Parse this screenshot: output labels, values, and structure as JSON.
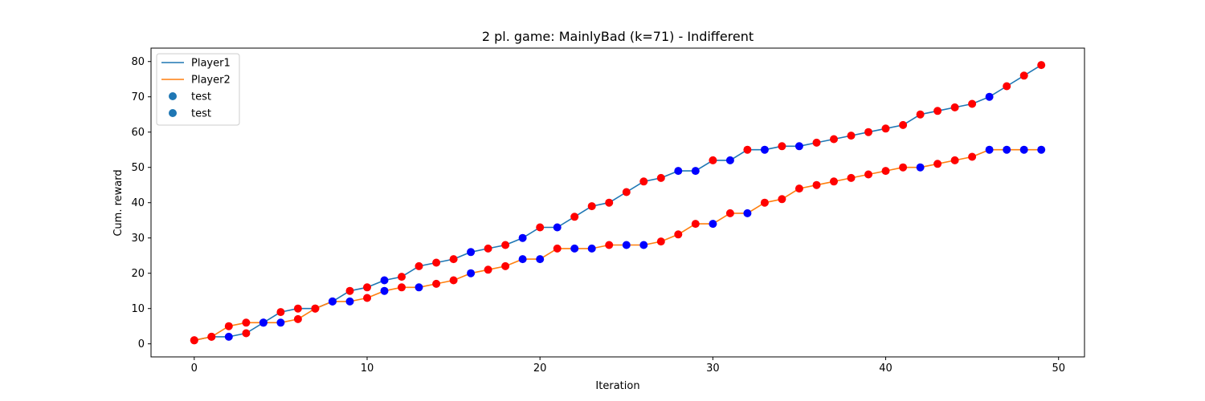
{
  "chart_data": {
    "type": "line",
    "title": "2 pl. game: MainlyBad (k=71) - Indifferent",
    "xlabel": "Iteration",
    "ylabel": "Cum. reward",
    "xlim": [
      -2.5,
      51.5
    ],
    "ylim": [
      -3.7,
      83.8
    ],
    "xticks": [
      0,
      10,
      20,
      30,
      40,
      50
    ],
    "yticks": [
      0,
      10,
      20,
      30,
      40,
      50,
      60,
      70,
      80
    ],
    "grid": false,
    "legend_position": "top-left",
    "x": [
      0,
      1,
      2,
      3,
      4,
      5,
      6,
      7,
      8,
      9,
      10,
      11,
      12,
      13,
      14,
      15,
      16,
      17,
      18,
      19,
      20,
      21,
      22,
      23,
      24,
      25,
      26,
      27,
      28,
      29,
      30,
      31,
      32,
      33,
      34,
      35,
      36,
      37,
      38,
      39,
      40,
      41,
      42,
      43,
      44,
      45,
      46,
      47,
      48,
      49
    ],
    "series": [
      {
        "name": "Player1",
        "color": "#1f77b4",
        "values": [
          1,
          2,
          2,
          3,
          6,
          9,
          10,
          10,
          12,
          15,
          16,
          18,
          19,
          22,
          23,
          24,
          26,
          27,
          28,
          30,
          33,
          33,
          36,
          39,
          40,
          43,
          46,
          47,
          49,
          49,
          52,
          52,
          55,
          55,
          56,
          56,
          57,
          58,
          59,
          60,
          61,
          62,
          65,
          66,
          67,
          68,
          70,
          73,
          76,
          79
        ],
        "markers": [
          "r",
          "r",
          "b",
          "r",
          "b",
          "r",
          "r",
          "r",
          "b",
          "r",
          "r",
          "b",
          "r",
          "r",
          "r",
          "r",
          "b",
          "r",
          "r",
          "b",
          "r",
          "b",
          "r",
          "r",
          "r",
          "r",
          "r",
          "r",
          "b",
          "b",
          "r",
          "b",
          "r",
          "b",
          "r",
          "b",
          "r",
          "r",
          "r",
          "r",
          "r",
          "r",
          "r",
          "r",
          "r",
          "r",
          "b",
          "r",
          "r",
          "r"
        ]
      },
      {
        "name": "Player2",
        "color": "#ff7f0e",
        "values": [
          1,
          2,
          5,
          6,
          6,
          6,
          7,
          10,
          12,
          12,
          13,
          15,
          16,
          16,
          17,
          18,
          20,
          21,
          22,
          24,
          24,
          27,
          27,
          27,
          28,
          28,
          28,
          29,
          31,
          34,
          34,
          37,
          37,
          40,
          41,
          44,
          45,
          46,
          47,
          48,
          49,
          50,
          50,
          51,
          52,
          53,
          55,
          55,
          55,
          55
        ],
        "markers": [
          "r",
          "r",
          "r",
          "r",
          "b",
          "b",
          "r",
          "r",
          "b",
          "b",
          "r",
          "b",
          "r",
          "b",
          "r",
          "r",
          "b",
          "r",
          "r",
          "b",
          "b",
          "r",
          "b",
          "b",
          "r",
          "b",
          "b",
          "r",
          "r",
          "r",
          "b",
          "r",
          "b",
          "r",
          "r",
          "r",
          "r",
          "r",
          "r",
          "r",
          "r",
          "r",
          "b",
          "r",
          "r",
          "r",
          "b",
          "b",
          "b",
          "b"
        ]
      }
    ],
    "scatter_legend": [
      "test",
      "test"
    ],
    "scatter_legend_color": "#1f77b4",
    "marker_colors": {
      "r": "#ff0000",
      "b": "#0000ff"
    }
  }
}
